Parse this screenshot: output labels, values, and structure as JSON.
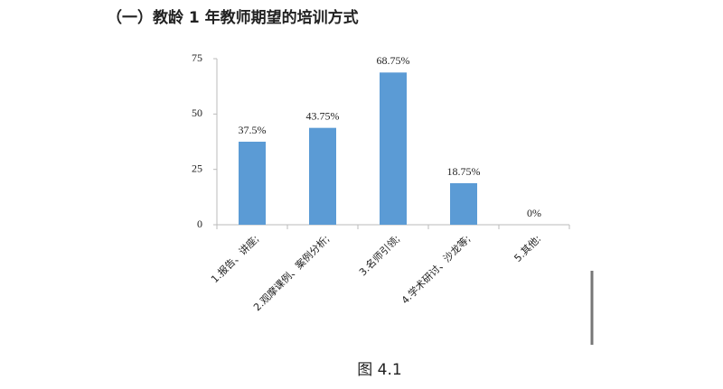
{
  "heading": "（一）教龄 1 年教师期望的培训方式",
  "caption": "图 4.1",
  "chart_data": {
    "type": "bar",
    "categories": [
      "1.报告、讲座;",
      "2.观摩课例、案例分析;",
      "3.名师引领;",
      "4.学术研讨、沙龙等;",
      "5.其他:"
    ],
    "values": [
      37.5,
      43.75,
      68.75,
      18.75,
      0
    ],
    "value_labels": [
      "37.5%",
      "43.75%",
      "68.75%",
      "18.75%",
      "0%"
    ],
    "color": "#5b9bd5",
    "ylim": [
      0,
      75
    ],
    "yticks": [
      0,
      25,
      50,
      75
    ],
    "grid": false
  }
}
